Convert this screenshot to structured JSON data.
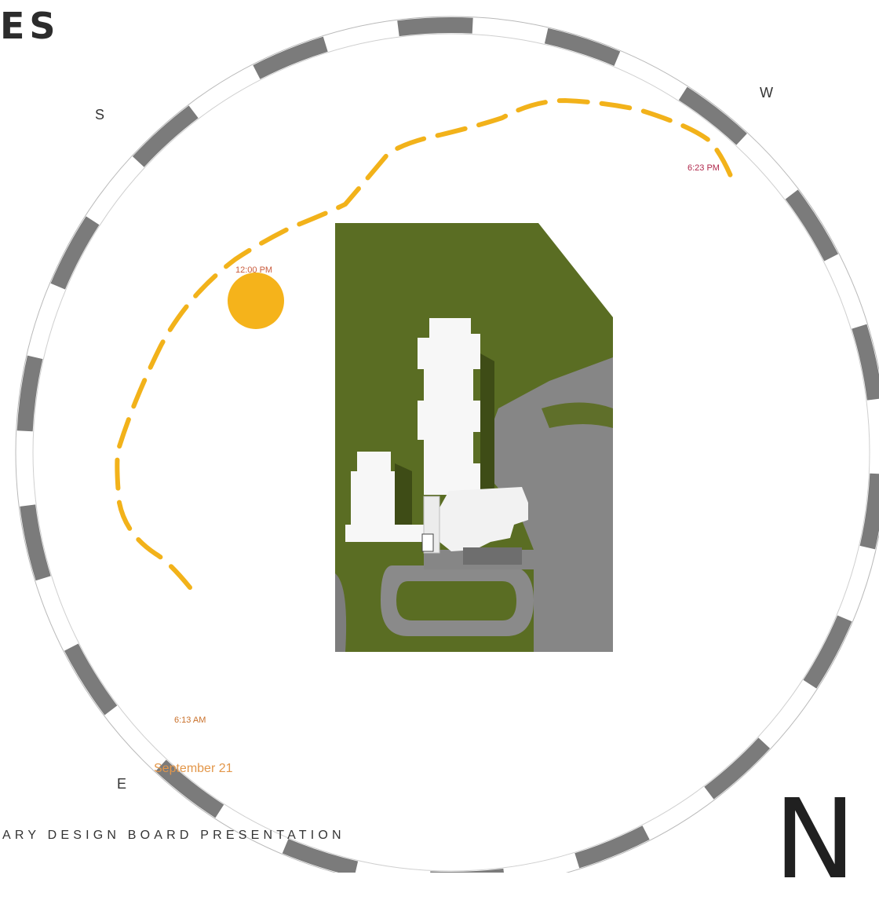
{
  "header": {
    "title_fragment": "ES"
  },
  "footer": {
    "text": "ARY DESIGN BOARD PRESENTATION"
  },
  "north_arrow": {
    "label": "N"
  },
  "compass": {
    "south": "S",
    "west": "W",
    "east": "E"
  },
  "sun_path": {
    "date_label": "September 21",
    "sunrise_label": "6:13 AM",
    "noon_label": "12:00 PM",
    "sunset_label": "6:23 PM",
    "sun_color": "#f5b31b",
    "path_color": "#f2b21a"
  },
  "site_plan": {
    "grass_color": "#5a6d23",
    "paving_color": "#858585",
    "building_color": "#f7f7f7"
  }
}
